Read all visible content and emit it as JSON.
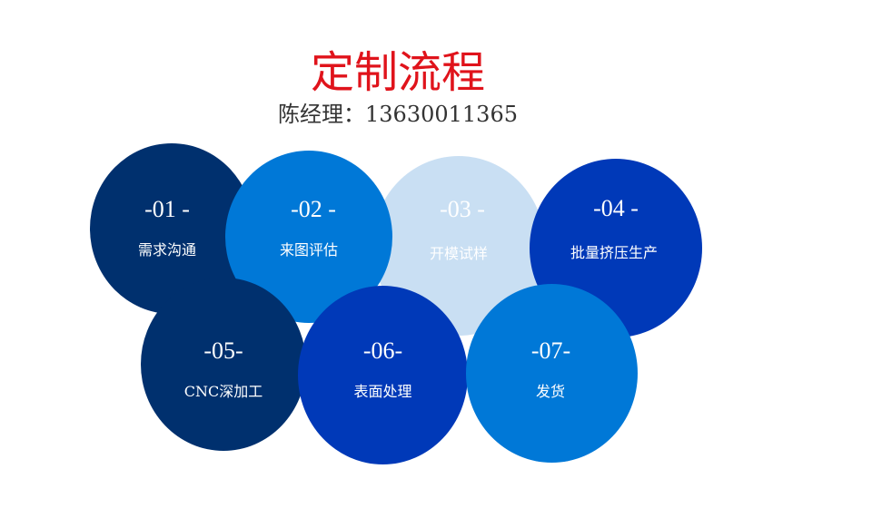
{
  "title": "定制流程",
  "contact": "陈经理：13630011365",
  "steps": [
    {
      "num": "-01 -",
      "label": "需求沟通",
      "color": "#00306e"
    },
    {
      "num": "-02 -",
      "label": "来图评估",
      "color": "#0078d7"
    },
    {
      "num": "-03 -",
      "label": "开模试样",
      "color": "#c9dff3"
    },
    {
      "num": "-04 -",
      "label": "批量挤压生产",
      "color": "#0039b8"
    },
    {
      "num": "-05-",
      "label": "CNC深加工",
      "color": "#00306e"
    },
    {
      "num": "-06-",
      "label": "表面处理",
      "color": "#0039b8"
    },
    {
      "num": "-07-",
      "label": "发货",
      "color": "#0078d7"
    }
  ]
}
